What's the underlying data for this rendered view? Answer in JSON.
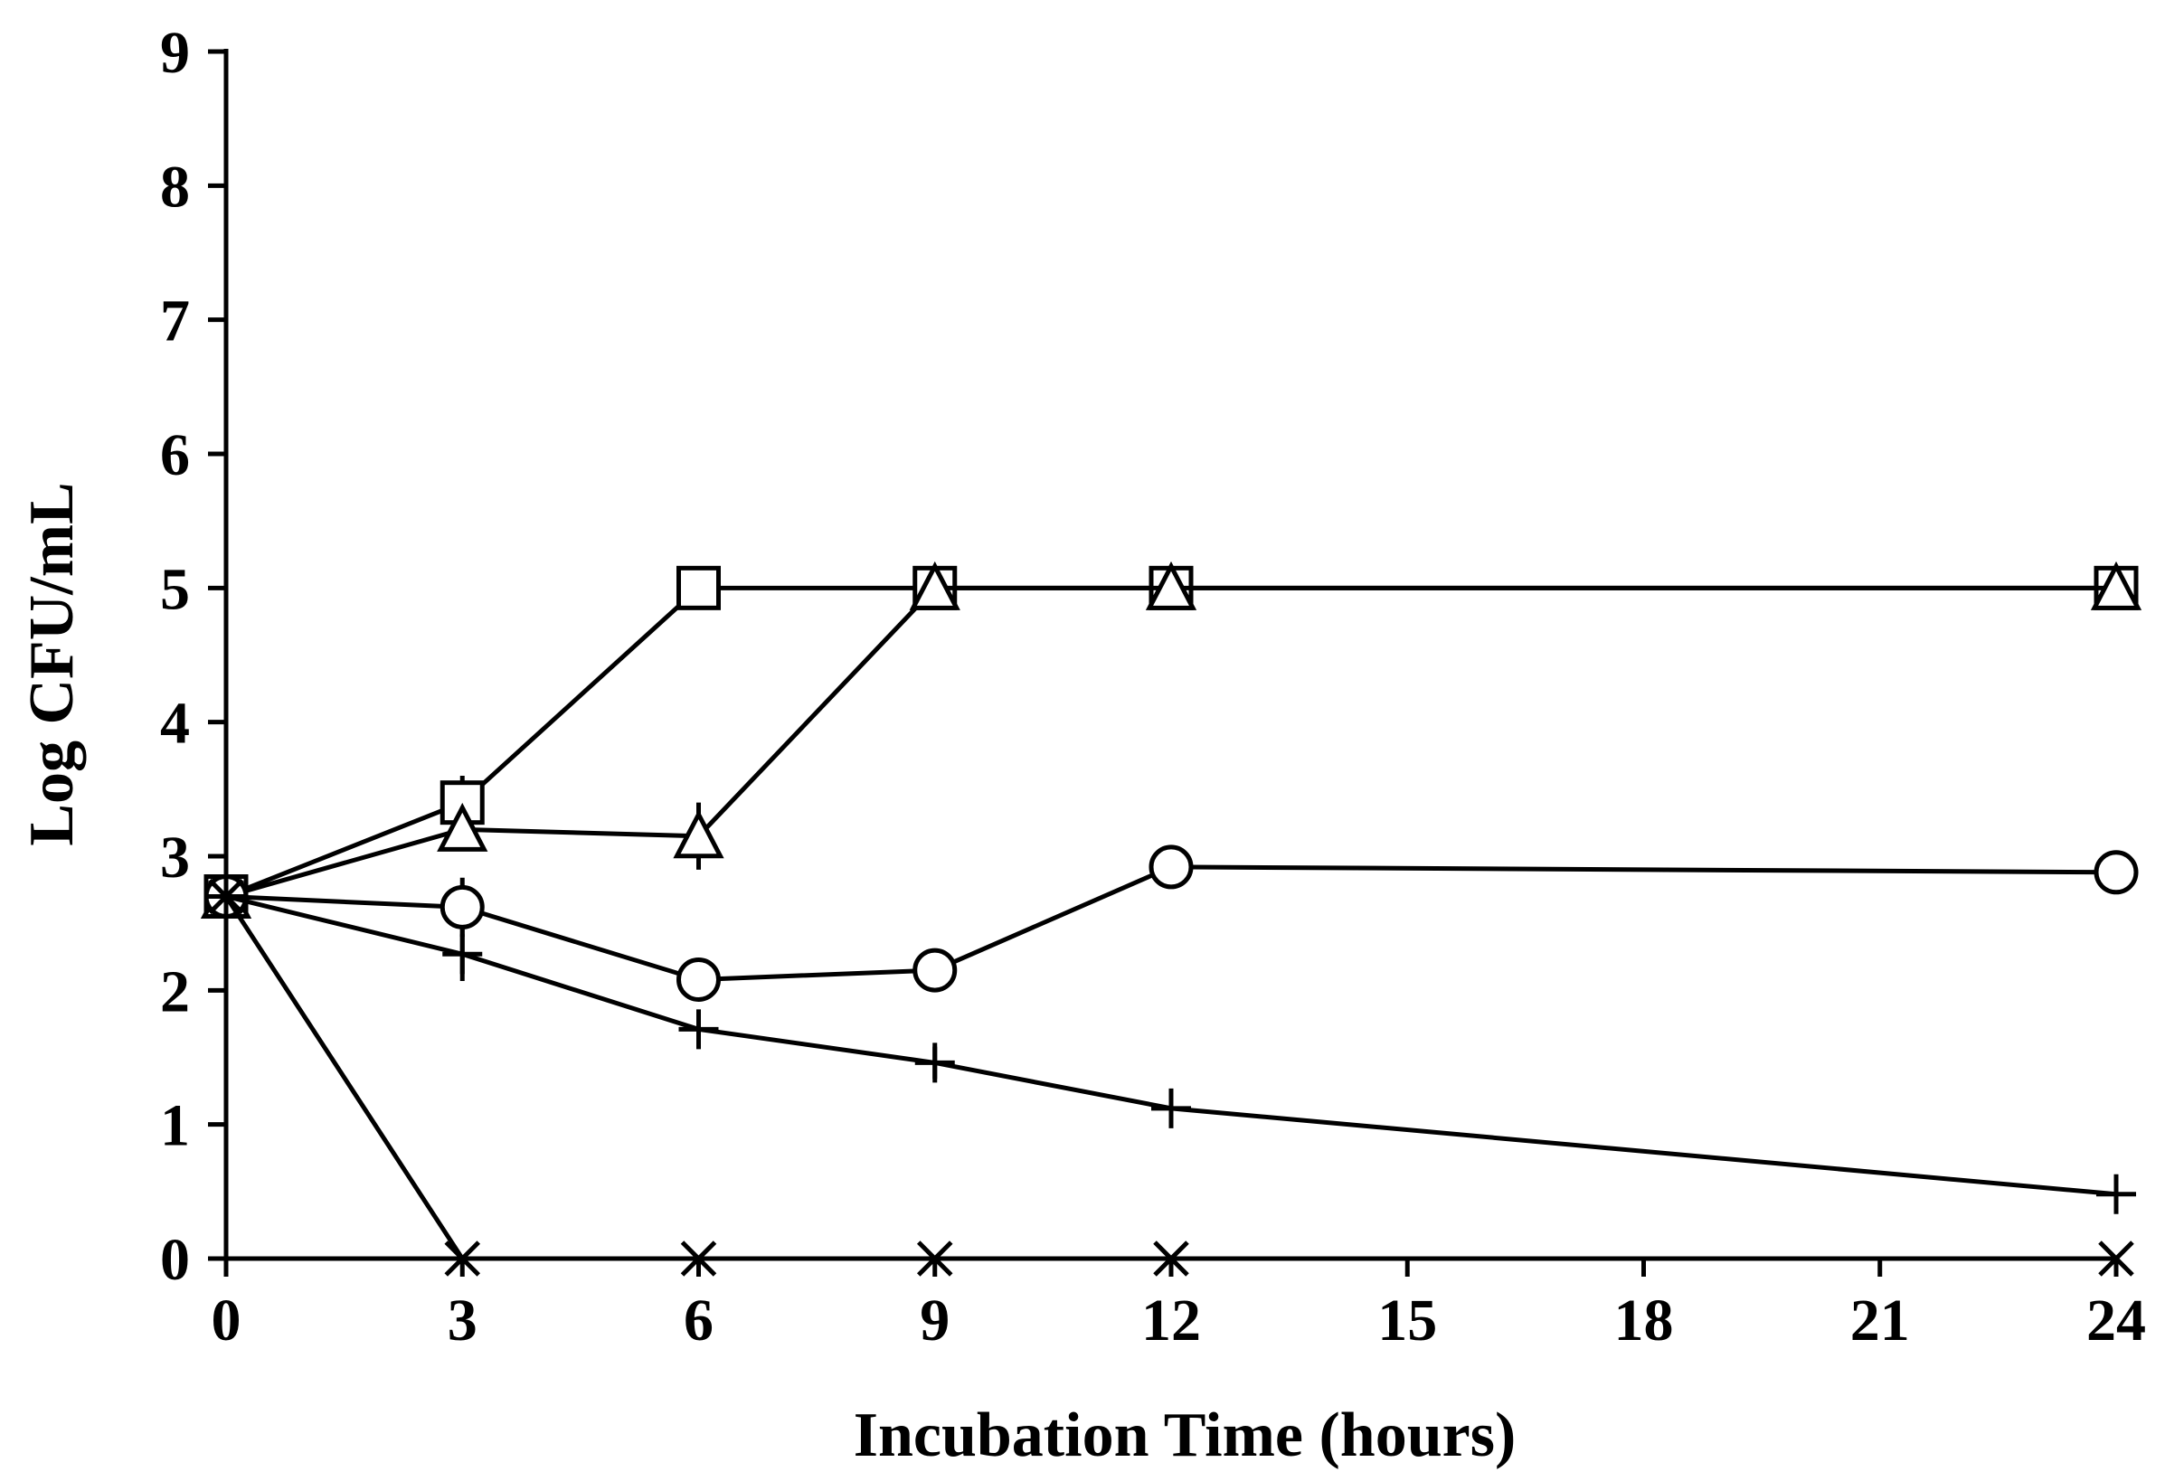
{
  "chart_data": {
    "type": "line",
    "title": "",
    "xlabel": "Incubation Time (hours)",
    "ylabel": "Log CFU/mL",
    "xlim": [
      0,
      24
    ],
    "ylim": [
      0,
      9
    ],
    "xticks": [
      0,
      3,
      6,
      9,
      12,
      15,
      18,
      21,
      24
    ],
    "yticks": [
      0,
      1,
      2,
      3,
      4,
      5,
      6,
      7,
      8,
      9
    ],
    "grid": false,
    "legend": "none",
    "series": [
      {
        "name": "square",
        "marker": "square",
        "x": [
          0,
          3,
          6,
          9,
          12,
          24
        ],
        "y": [
          2.7,
          3.4,
          5.0,
          5.0,
          5.0,
          5.0
        ],
        "err": [
          0.05,
          0.2,
          0,
          0,
          0,
          0
        ]
      },
      {
        "name": "triangle",
        "marker": "triangle",
        "x": [
          0,
          3,
          6,
          9,
          12,
          24
        ],
        "y": [
          2.7,
          3.2,
          3.15,
          5.0,
          5.0,
          5.0
        ],
        "err": [
          0.05,
          0.15,
          0.25,
          0,
          0,
          0
        ]
      },
      {
        "name": "circle",
        "marker": "circle",
        "x": [
          0,
          3,
          6,
          9,
          12,
          24
        ],
        "y": [
          2.7,
          2.62,
          2.08,
          2.15,
          2.92,
          2.88
        ],
        "err": [
          0.05,
          0.22,
          0.1,
          0.1,
          0.1,
          0.1
        ]
      },
      {
        "name": "plus",
        "marker": "plus",
        "x": [
          0,
          3,
          6,
          9,
          12,
          24
        ],
        "y": [
          2.7,
          2.27,
          1.71,
          1.46,
          1.12,
          0.48
        ],
        "err": [
          0.05,
          0.2,
          0.1,
          0.12,
          0.1,
          0.05
        ]
      },
      {
        "name": "cross",
        "marker": "x",
        "x": [
          0,
          3,
          6,
          9,
          12,
          24
        ],
        "y": [
          2.7,
          0,
          0,
          0,
          0,
          0
        ],
        "err": [
          0,
          0,
          0,
          0,
          0,
          0
        ]
      }
    ]
  }
}
